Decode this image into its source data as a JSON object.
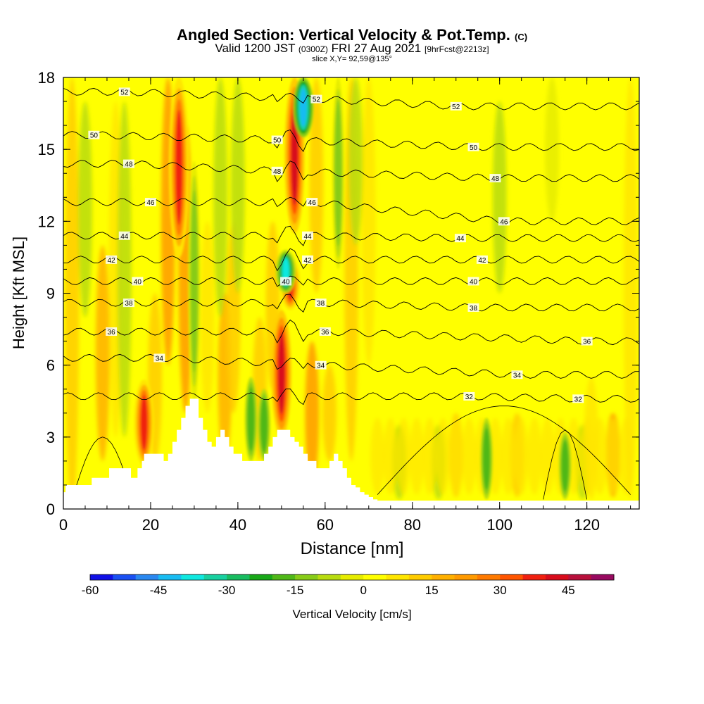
{
  "header": {
    "title": "Angled Section: Vertical Velocity & Pot.Temp.",
    "title_mark": "(C)",
    "valid_prefix": "Valid 1200 JST",
    "valid_zone": "(0300Z)",
    "valid_date": "FRI 27 Aug 2021",
    "valid_fcst": "[9hrFcst@2213z]",
    "slice": "slice X,Y= 92,59@135°"
  },
  "chart_data": {
    "type": "heatmap",
    "title": "Angled Section: Vertical Velocity & Pot.Temp.",
    "xlabel": "Distance [nm]",
    "ylabel": "Height [Kft MSL]",
    "xlim": [
      0,
      132
    ],
    "ylim": [
      0,
      18
    ],
    "xticks": [
      0,
      20,
      40,
      60,
      80,
      100,
      120
    ],
    "yticks": [
      0,
      3,
      6,
      9,
      12,
      15,
      18
    ],
    "filled_variable": "Vertical Velocity [cm/s]",
    "colorbar": {
      "label": "Vertical Velocity [cm/s]",
      "range": [
        -60,
        55
      ],
      "step": 5,
      "tick_values": [
        -60,
        -45,
        -30,
        -15,
        0,
        15,
        30,
        45
      ],
      "colors": [
        "#1010e6",
        "#1a50f2",
        "#2a88f0",
        "#18bcf2",
        "#10e8e0",
        "#18d0a0",
        "#18bc60",
        "#18a818",
        "#50b818",
        "#88cc18",
        "#b8dc10",
        "#e6ec00",
        "#ffff00",
        "#ffe600",
        "#ffcc00",
        "#ffb000",
        "#ff9a00",
        "#ff7a00",
        "#ff5500",
        "#f02010",
        "#d80c1c",
        "#b8103c",
        "#980a60",
        "#701a80"
      ]
    },
    "vertical_velocity_features": [
      {
        "kind": "updraft",
        "x": 18.5,
        "z_range": [
          1.8,
          5.4
        ],
        "peak": 35
      },
      {
        "kind": "updraft",
        "x": 26.5,
        "z_range": [
          10.5,
          18
        ],
        "peak": 35
      },
      {
        "kind": "updraft",
        "x": 50,
        "z_range": [
          3.0,
          8.3
        ],
        "peak": 40
      },
      {
        "kind": "updraft",
        "x": 53,
        "z_range": [
          11.5,
          18
        ],
        "peak": 40
      },
      {
        "kind": "updraft",
        "x": 52,
        "z_range": [
          8.3,
          10.5
        ],
        "peak": 35
      },
      {
        "kind": "downdraft",
        "x": 55,
        "z_range": [
          15.5,
          18
        ],
        "peak": -45
      },
      {
        "kind": "downdraft",
        "x": 51,
        "z_range": [
          9.0,
          10.8
        ],
        "peak": -40
      },
      {
        "kind": "downdraft",
        "x": 30,
        "z_range": [
          4.5,
          14.5
        ],
        "peak": -15
      },
      {
        "kind": "downdraft",
        "x": 43,
        "z_range": [
          2.0,
          5.5
        ],
        "peak": -20
      },
      {
        "kind": "downdraft",
        "x": 46,
        "z_range": [
          2.0,
          5.0
        ],
        "peak": -20
      },
      {
        "kind": "downdraft",
        "x": 63,
        "z_range": [
          10.0,
          18
        ],
        "peak": -12
      },
      {
        "kind": "downdraft",
        "x": 97,
        "z_range": [
          0.4,
          3.8
        ],
        "peak": -20
      },
      {
        "kind": "downdraft",
        "x": 115,
        "z_range": [
          0.4,
          3.2
        ],
        "peak": -20
      }
    ],
    "terrain_profile": {
      "x": [
        0,
        0.5,
        1,
        6,
        6.5,
        10,
        10.5,
        15,
        15.5,
        16,
        17,
        18,
        18.5,
        19,
        22,
        23,
        23.5,
        24,
        25,
        26,
        27,
        28,
        29,
        30,
        31,
        32,
        33,
        34,
        35,
        36,
        37,
        38,
        39,
        40,
        41,
        42,
        43,
        44,
        46,
        47,
        48,
        49,
        50,
        51,
        52,
        53,
        54,
        55,
        56,
        57,
        58,
        59,
        60,
        61,
        62,
        63,
        64,
        65,
        66,
        67,
        68,
        69,
        70,
        71,
        72,
        132
      ],
      "z_kft": [
        0.7,
        1.0,
        1.0,
        1.0,
        1.3,
        1.3,
        1.7,
        1.7,
        1.3,
        1.3,
        1.7,
        2.0,
        2.3,
        2.3,
        2.3,
        2.0,
        2.0,
        2.3,
        2.8,
        3.3,
        3.8,
        4.3,
        4.6,
        4.6,
        3.8,
        3.3,
        2.8,
        2.6,
        3.0,
        3.3,
        3.0,
        2.6,
        2.3,
        2.3,
        2.0,
        2.0,
        2.0,
        2.0,
        2.3,
        2.6,
        3.0,
        3.3,
        3.3,
        3.3,
        3.0,
        2.8,
        2.6,
        2.3,
        2.0,
        2.0,
        1.7,
        1.7,
        1.7,
        2.0,
        2.3,
        2.0,
        1.7,
        1.3,
        1.0,
        0.9,
        0.7,
        0.6,
        0.5,
        0.4,
        0.35,
        0.35
      ]
    },
    "potential_temperature_contours": {
      "units": "C",
      "levels": [
        {
          "value": 32,
          "label_x": [
            93,
            118
          ],
          "label_z": [
            4.7,
            4.6
          ]
        },
        {
          "value": 34,
          "label_x": [
            22,
            59,
            104
          ],
          "label_z": [
            6.3,
            6.0,
            5.6
          ]
        },
        {
          "value": 36,
          "label_x": [
            11,
            60,
            120
          ],
          "label_z": [
            7.4,
            7.4,
            7.0
          ]
        },
        {
          "value": 38,
          "label_x": [
            15,
            59,
            94
          ],
          "label_z": [
            8.6,
            8.6,
            8.4
          ]
        },
        {
          "value": 40,
          "label_x": [
            17,
            51,
            94
          ],
          "label_z": [
            9.5,
            9.5,
            9.5
          ]
        },
        {
          "value": 42,
          "label_x": [
            11,
            56,
            96
          ],
          "label_z": [
            10.4,
            10.4,
            10.4
          ]
        },
        {
          "value": 44,
          "label_x": [
            14,
            56,
            91
          ],
          "label_z": [
            11.4,
            11.4,
            11.3
          ]
        },
        {
          "value": 46,
          "label_x": [
            20,
            57,
            101
          ],
          "label_z": [
            12.8,
            12.8,
            12.0
          ]
        },
        {
          "value": 48,
          "label_x": [
            15,
            49,
            99
          ],
          "label_z": [
            14.4,
            14.1,
            13.8
          ]
        },
        {
          "value": 50,
          "label_x": [
            7,
            49,
            94
          ],
          "label_z": [
            15.6,
            15.4,
            15.1
          ]
        },
        {
          "value": 52,
          "label_x": [
            14,
            58,
            90
          ],
          "label_z": [
            17.4,
            17.1,
            16.8
          ]
        }
      ]
    }
  }
}
